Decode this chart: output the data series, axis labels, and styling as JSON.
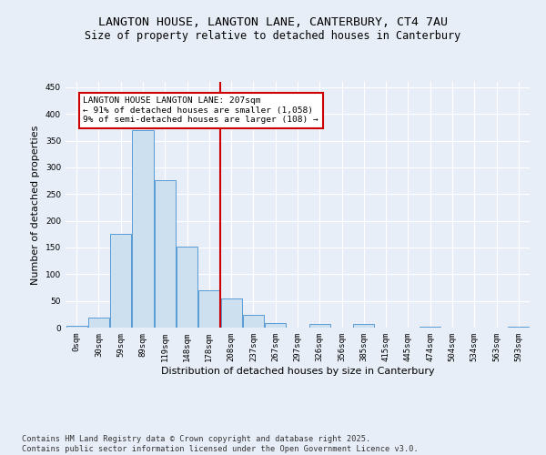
{
  "title": "LANGTON HOUSE, LANGTON LANE, CANTERBURY, CT4 7AU",
  "subtitle": "Size of property relative to detached houses in Canterbury",
  "xlabel": "Distribution of detached houses by size in Canterbury",
  "ylabel": "Number of detached properties",
  "bin_labels": [
    "0sqm",
    "30sqm",
    "59sqm",
    "89sqm",
    "119sqm",
    "148sqm",
    "178sqm",
    "208sqm",
    "237sqm",
    "267sqm",
    "297sqm",
    "326sqm",
    "356sqm",
    "385sqm",
    "415sqm",
    "445sqm",
    "474sqm",
    "504sqm",
    "534sqm",
    "563sqm",
    "593sqm"
  ],
  "bar_values": [
    3,
    18,
    176,
    370,
    276,
    152,
    70,
    54,
    24,
    9,
    0,
    6,
    0,
    6,
    0,
    0,
    2,
    0,
    0,
    0,
    2
  ],
  "bar_color": "#cce0f0",
  "bar_edge_color": "#5a9bd5",
  "vline_color": "#cc0000",
  "annotation_text": "LANGTON HOUSE LANGTON LANE: 207sqm\n← 91% of detached houses are smaller (1,058)\n9% of semi-detached houses are larger (108) →",
  "annotation_box_color": "#cc0000",
  "ylim": [
    0,
    460
  ],
  "yticks": [
    0,
    50,
    100,
    150,
    200,
    250,
    300,
    350,
    400,
    450
  ],
  "bg_color": "#e8eef8",
  "plot_bg_color": "#e8eef8",
  "footer_text": "Contains HM Land Registry data © Crown copyright and database right 2025.\nContains public sector information licensed under the Open Government Licence v3.0.",
  "title_fontsize": 9.5,
  "subtitle_fontsize": 8.5,
  "axis_label_fontsize": 8,
  "tick_fontsize": 6.5,
  "annotation_fontsize": 6.8,
  "footer_fontsize": 6.2
}
